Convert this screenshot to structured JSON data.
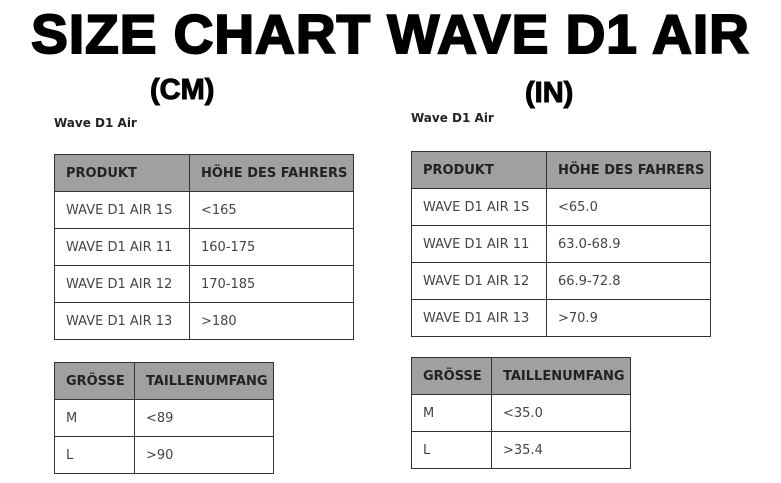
{
  "title": "SIZE CHART WAVE D1 AIR",
  "cm": {
    "unit": "(CM)",
    "subtitle": "Wave D1 Air",
    "height_table": {
      "headers": [
        "PRODUKT",
        "HÖHE DES FAHRERS"
      ],
      "rows": [
        [
          "WAVE D1 AIR 1S",
          "<165"
        ],
        [
          "WAVE D1 AIR 11",
          "160-175"
        ],
        [
          "WAVE D1 AIR 12",
          "170-185"
        ],
        [
          "WAVE D1 AIR 13",
          ">180"
        ]
      ]
    },
    "size_table": {
      "headers": [
        "GRÖSSE",
        "TAILLENUMFANG"
      ],
      "rows": [
        [
          "M",
          "<89"
        ],
        [
          "L",
          ">90"
        ]
      ]
    }
  },
  "in": {
    "unit": "(IN)",
    "subtitle": "Wave D1 Air",
    "height_table": {
      "headers": [
        "PRODUKT",
        "HÖHE DES FAHRERS"
      ],
      "rows": [
        [
          "WAVE D1 AIR 1S",
          "<65.0"
        ],
        [
          "WAVE D1 AIR 11",
          "63.0-68.9"
        ],
        [
          "WAVE D1 AIR 12",
          "66.9-72.8"
        ],
        [
          "WAVE D1 AIR 13",
          ">70.9"
        ]
      ]
    },
    "size_table": {
      "headers": [
        "GRÖSSE",
        "TAILLENUMFANG"
      ],
      "rows": [
        [
          "M",
          "<35.0"
        ],
        [
          "L",
          ">35.4"
        ]
      ]
    }
  }
}
